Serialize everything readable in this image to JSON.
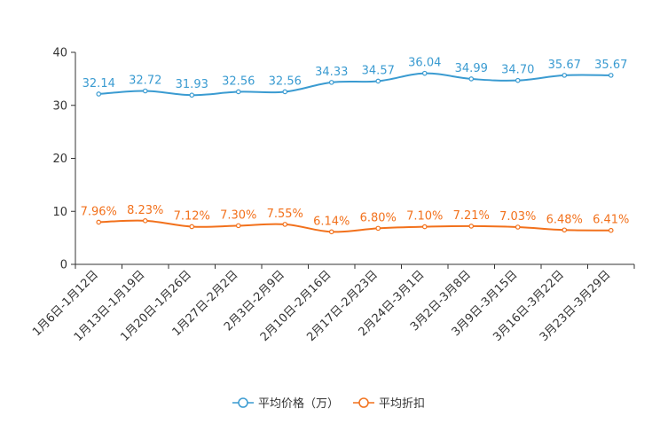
{
  "chart_data": {
    "type": "line",
    "title": "",
    "xlabel": "",
    "ylabel": "",
    "ylim": [
      0,
      40
    ],
    "yticks": [
      0,
      10,
      20,
      30,
      40
    ],
    "legend_position": "bottom",
    "categories": [
      "1月6日-1月12日",
      "1月13日-1月19日",
      "1月20日-1月26日",
      "1月27日-2月2日",
      "2月3日-2月9日",
      "2月10日-2月16日",
      "2月17日-2月23日",
      "2月24日-3月1日",
      "3月2日-3月8日",
      "3月9日-3月15日",
      "3月16日-3月22日",
      "3月23日-3月29日"
    ],
    "series": [
      {
        "name": "平均价格（万）",
        "color": "#3a9bd1",
        "values": [
          32.14,
          32.72,
          31.93,
          32.56,
          32.56,
          34.33,
          34.57,
          36.04,
          34.99,
          34.7,
          35.67,
          35.67
        ],
        "labels": [
          "32.14",
          "32.72",
          "31.93",
          "32.56",
          "32.56",
          "34.33",
          "34.57",
          "36.04",
          "34.99",
          "34.70",
          "35.67",
          "35.67"
        ]
      },
      {
        "name": "平均折扣",
        "color": "#f2711c",
        "values": [
          7.96,
          8.23,
          7.12,
          7.3,
          7.55,
          6.14,
          6.8,
          7.1,
          7.21,
          7.03,
          6.48,
          6.41
        ],
        "labels": [
          "7.96%",
          "8.23%",
          "7.12%",
          "7.30%",
          "7.55%",
          "6.14%",
          "6.80%",
          "7.10%",
          "7.21%",
          "7.03%",
          "6.48%",
          "6.41%"
        ]
      }
    ]
  }
}
